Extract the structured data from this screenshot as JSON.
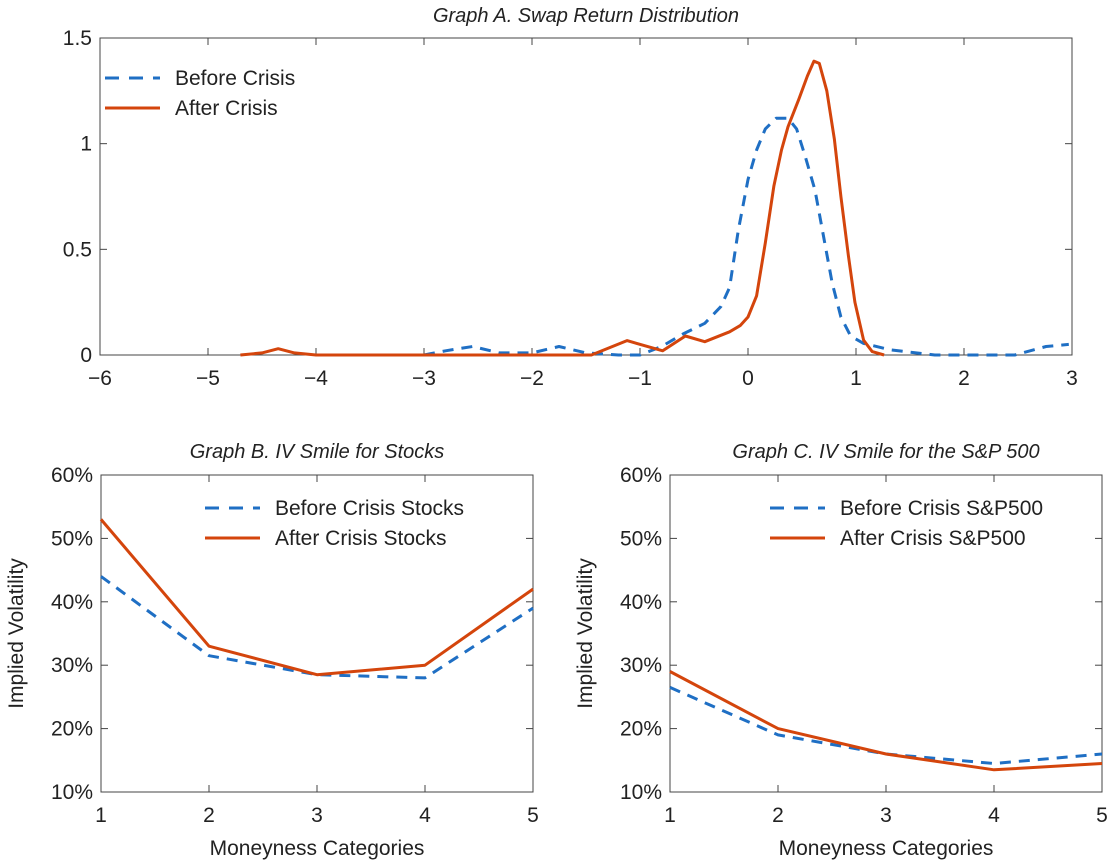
{
  "colors": {
    "before": "#1f6fc4",
    "after": "#d4450c"
  },
  "chart_data": [
    {
      "type": "line",
      "title": "Graph A. Swap Return Distribution",
      "xlabel": "",
      "ylabel": "",
      "xlim": [
        -6,
        3
      ],
      "ylim": [
        0,
        1.5
      ],
      "xticks": [
        "−6",
        "−5",
        "−4",
        "−3",
        "−2",
        "−1",
        "0",
        "1",
        "2",
        "3"
      ],
      "xtick_values": [
        -6,
        -5,
        -4,
        -3,
        -2,
        -1,
        0,
        1,
        2,
        3
      ],
      "yticks": [
        "0",
        "0.5",
        "1",
        "1.5"
      ],
      "ytick_values": [
        0,
        0.5,
        1,
        1.5
      ],
      "legend_position": "top-left",
      "grid": false,
      "series": [
        {
          "name": "Before Crisis",
          "style": "dashed",
          "x": [
            -3.0,
            -2.8,
            -2.55,
            -2.3,
            -2.0,
            -1.75,
            -1.5,
            -1.2,
            -1.0,
            -0.8,
            -0.6,
            -0.4,
            -0.25,
            -0.17,
            -0.09,
            0,
            0.08,
            0.16,
            0.26,
            0.37,
            0.45,
            0.53,
            0.62,
            0.7,
            0.78,
            0.86,
            0.95,
            1.07,
            1.32,
            1.73,
            2.47,
            2.76,
            2.97
          ],
          "y": [
            0,
            0.02,
            0.04,
            0.01,
            0.01,
            0.04,
            0.01,
            0,
            0,
            0.04,
            0.1,
            0.15,
            0.23,
            0.32,
            0.59,
            0.83,
            0.97,
            1.07,
            1.12,
            1.12,
            1.07,
            0.94,
            0.78,
            0.56,
            0.34,
            0.18,
            0.09,
            0.055,
            0.024,
            0,
            0,
            0.04,
            0.05
          ]
        },
        {
          "name": "After Crisis",
          "style": "solid",
          "x": [
            -4.7,
            -4.5,
            -4.35,
            -4.2,
            -4.0,
            -1.45,
            -1.12,
            -0.79,
            -0.58,
            -0.4,
            -0.17,
            -0.07,
            0,
            0.08,
            0.16,
            0.24,
            0.31,
            0.37,
            0.47,
            0.55,
            0.61,
            0.66,
            0.73,
            0.8,
            0.86,
            0.93,
            0.99,
            1.07,
            1.15,
            1.26
          ],
          "y": [
            0,
            0.01,
            0.03,
            0.01,
            0,
            0,
            0.068,
            0.02,
            0.09,
            0.063,
            0.11,
            0.14,
            0.18,
            0.28,
            0.53,
            0.8,
            0.97,
            1.08,
            1.21,
            1.32,
            1.39,
            1.38,
            1.25,
            1.02,
            0.75,
            0.47,
            0.25,
            0.07,
            0.016,
            0
          ]
        }
      ]
    },
    {
      "type": "line",
      "title": "Graph B. IV Smile for Stocks",
      "xlabel": "Moneyness Categories",
      "ylabel": "Implied Volatility",
      "xlim": [
        1,
        5
      ],
      "ylim": [
        10,
        60
      ],
      "categories": [
        "1",
        "2",
        "3",
        "4",
        "5"
      ],
      "yticks": [
        "10%",
        "20%",
        "30%",
        "40%",
        "50%",
        "60%"
      ],
      "ytick_values": [
        10,
        20,
        30,
        40,
        50,
        60
      ],
      "legend_position": "top-right",
      "grid": false,
      "series": [
        {
          "name": "Before Crisis Stocks",
          "style": "dashed",
          "values": [
            44,
            31.5,
            28.5,
            28,
            39
          ]
        },
        {
          "name": "After Crisis Stocks",
          "style": "solid",
          "values": [
            53,
            33,
            28.5,
            30,
            42
          ]
        }
      ]
    },
    {
      "type": "line",
      "title": "Graph C. IV Smile for the S&P 500",
      "xlabel": "Moneyness Categories",
      "ylabel": "Implied Volatility",
      "xlim": [
        1,
        5
      ],
      "ylim": [
        10,
        60
      ],
      "categories": [
        "1",
        "2",
        "3",
        "4",
        "5"
      ],
      "yticks": [
        "10%",
        "20%",
        "30%",
        "40%",
        "50%",
        "60%"
      ],
      "ytick_values": [
        10,
        20,
        30,
        40,
        50,
        60
      ],
      "legend_position": "top-right",
      "grid": false,
      "series": [
        {
          "name": "Before Crisis S&P500",
          "style": "dashed",
          "values": [
            26.5,
            19,
            16,
            14.5,
            16
          ]
        },
        {
          "name": "After Crisis S&P500",
          "style": "solid",
          "values": [
            29,
            20,
            16,
            13.5,
            14.5
          ]
        }
      ]
    }
  ]
}
